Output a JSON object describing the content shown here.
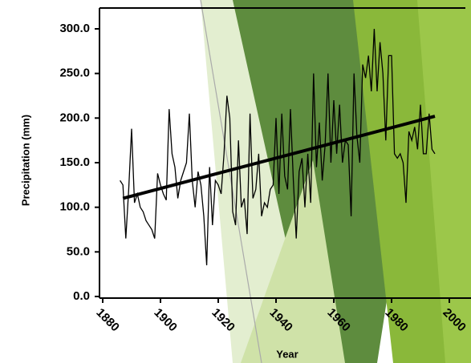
{
  "chart_data": {
    "type": "line",
    "xlabel": "Year",
    "ylabel": "Precipitation (mm)",
    "xlim": [
      1880,
      2000
    ],
    "ylim": [
      0,
      300
    ],
    "xticks": [
      1880,
      1900,
      1920,
      1940,
      1960,
      1980,
      2000
    ],
    "yticks": [
      {
        "value": 0,
        "label": "0.0"
      },
      {
        "value": 50,
        "label": "50.0"
      },
      {
        "value": 100,
        "label": "100.0"
      },
      {
        "value": 150,
        "label": "150.0"
      },
      {
        "value": 200,
        "label": "200.0"
      },
      {
        "value": 250,
        "label": "250.0"
      },
      {
        "value": 300,
        "label": "300.0"
      }
    ],
    "color": "#000000",
    "x": [
      1886,
      1887,
      1888,
      1889,
      1890,
      1891,
      1892,
      1893,
      1894,
      1895,
      1896,
      1897,
      1898,
      1899,
      1900,
      1901,
      1902,
      1903,
      1904,
      1905,
      1906,
      1907,
      1908,
      1909,
      1910,
      1911,
      1912,
      1913,
      1914,
      1915,
      1916,
      1917,
      1918,
      1919,
      1920,
      1921,
      1922,
      1923,
      1924,
      1925,
      1926,
      1927,
      1928,
      1929,
      1930,
      1931,
      1932,
      1933,
      1934,
      1935,
      1936,
      1937,
      1938,
      1939,
      1940,
      1941,
      1942,
      1943,
      1944,
      1945,
      1946,
      1947,
      1948,
      1949,
      1950,
      1951,
      1952,
      1953,
      1954,
      1955,
      1956,
      1957,
      1958,
      1959,
      1960,
      1961,
      1962,
      1963,
      1964,
      1965,
      1966,
      1967,
      1968,
      1969,
      1970,
      1971,
      1972,
      1973,
      1974,
      1975,
      1976,
      1977,
      1978,
      1979,
      1980,
      1981,
      1982,
      1983,
      1984,
      1985,
      1986,
      1987,
      1988,
      1989,
      1990,
      1991,
      1992,
      1993,
      1994,
      1995
    ],
    "values": [
      130,
      125,
      65,
      120,
      188,
      105,
      115,
      100,
      95,
      85,
      80,
      75,
      65,
      138,
      125,
      115,
      108,
      210,
      160,
      145,
      110,
      130,
      140,
      150,
      205,
      130,
      100,
      140,
      125,
      90,
      35,
      145,
      80,
      130,
      125,
      115,
      160,
      225,
      200,
      95,
      80,
      175,
      100,
      110,
      70,
      205,
      110,
      120,
      160,
      90,
      105,
      100,
      120,
      125,
      200,
      115,
      205,
      135,
      120,
      210,
      130,
      65,
      140,
      155,
      100,
      160,
      105,
      250,
      145,
      195,
      130,
      170,
      250,
      150,
      220,
      160,
      215,
      150,
      175,
      170,
      90,
      250,
      180,
      150,
      260,
      245,
      270,
      230,
      300,
      230,
      285,
      250,
      175,
      270,
      270,
      160,
      155,
      160,
      150,
      105,
      185,
      175,
      190,
      165,
      215,
      160,
      160,
      205,
      165,
      160
    ],
    "trend": {
      "x": [
        1887,
        1995
      ],
      "values": [
        110,
        202
      ]
    }
  }
}
